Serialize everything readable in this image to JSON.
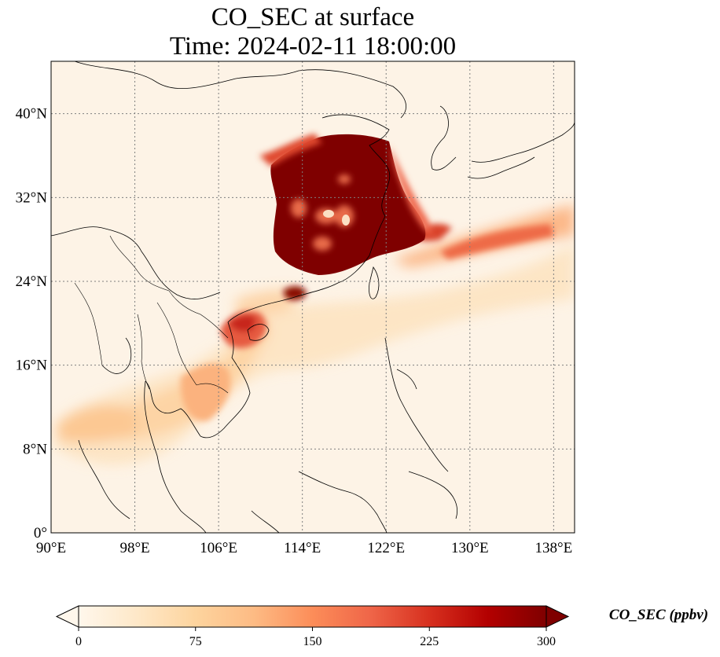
{
  "title": {
    "line1": "CO_SEC at surface",
    "line2": "Time: 2024-02-11 18:00:00"
  },
  "map": {
    "projection": "PlateCarree",
    "lon_range": [
      90,
      140
    ],
    "lat_range": [
      0,
      45
    ],
    "gridlines": "dotted",
    "lon_ticks": [
      {
        "value": 90,
        "label": "90°E"
      },
      {
        "value": 98,
        "label": "98°E"
      },
      {
        "value": 106,
        "label": "106°E"
      },
      {
        "value": 114,
        "label": "114°E"
      },
      {
        "value": 122,
        "label": "122°E"
      },
      {
        "value": 130,
        "label": "130°E"
      },
      {
        "value": 138,
        "label": "138°E"
      }
    ],
    "lat_ticks": [
      {
        "value": 0,
        "label": "0°"
      },
      {
        "value": 8,
        "label": "8°N"
      },
      {
        "value": 16,
        "label": "16°N"
      },
      {
        "value": 24,
        "label": "24°N"
      },
      {
        "value": 32,
        "label": "32°N"
      },
      {
        "value": 40,
        "label": "40°N"
      }
    ]
  },
  "colorbar": {
    "label": "CO_SEC (ppbv)",
    "colormap": "OrRd",
    "range": [
      0,
      300
    ],
    "extend": "both",
    "ticks": [
      {
        "value": 0,
        "label": "0"
      },
      {
        "value": 75,
        "label": "75"
      },
      {
        "value": 150,
        "label": "150"
      },
      {
        "value": 225,
        "label": "225"
      },
      {
        "value": 300,
        "label": "300"
      }
    ],
    "colors": [
      "#fff7ec",
      "#fee8c8",
      "#fdd49e",
      "#fdbb84",
      "#fc8d59",
      "#ef6548",
      "#d7301f",
      "#b30000",
      "#7f0000"
    ]
  }
}
